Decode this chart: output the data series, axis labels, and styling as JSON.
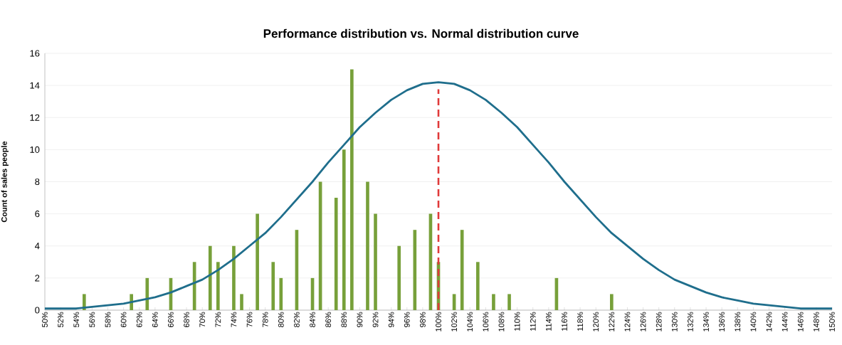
{
  "chart_data": {
    "type": "bar",
    "title": "Performance distribution vs. Normal distribution curve",
    "ylabel": "Count of sales people",
    "series": [
      {
        "color": "#77a03a",
        "x": [
          55,
          61,
          63,
          66,
          69,
          71,
          72,
          74,
          75,
          77,
          79,
          80,
          82,
          84,
          85,
          87,
          88,
          89,
          91,
          92,
          95,
          97,
          99,
          100,
          102,
          103,
          105,
          107,
          109,
          115,
          122
        ],
        "values": [
          1,
          1,
          2,
          2,
          3,
          4,
          3,
          4,
          1,
          6,
          3,
          2,
          5,
          2,
          8,
          7,
          10,
          15,
          8,
          6,
          4,
          5,
          6,
          3,
          1,
          5,
          3,
          1,
          1,
          2,
          1
        ]
      },
      {
        "type": "line",
        "color": "#1f6e8c",
        "x": [
          50,
          52,
          54,
          56,
          58,
          60,
          62,
          64,
          66,
          68,
          70,
          72,
          74,
          76,
          78,
          80,
          82,
          84,
          86,
          88,
          90,
          92,
          94,
          96,
          98,
          100,
          102,
          104,
          106,
          108,
          110,
          112,
          114,
          116,
          118,
          120,
          122,
          124,
          126,
          128,
          130,
          132,
          134,
          136,
          138,
          140,
          142,
          144,
          146,
          148,
          150
        ],
        "values": [
          0.1,
          0.1,
          0.1,
          0.2,
          0.3,
          0.4,
          0.6,
          0.8,
          1.1,
          1.5,
          1.9,
          2.5,
          3.2,
          4.0,
          4.8,
          5.8,
          6.9,
          8.0,
          9.2,
          10.3,
          11.4,
          12.3,
          13.1,
          13.7,
          14.1,
          14.2,
          14.1,
          13.7,
          13.1,
          12.3,
          11.4,
          10.3,
          9.2,
          8.0,
          6.9,
          5.8,
          4.8,
          4.0,
          3.2,
          2.5,
          1.9,
          1.5,
          1.1,
          0.8,
          0.6,
          0.4,
          0.3,
          0.2,
          0.1,
          0.1,
          0.1
        ]
      }
    ],
    "ref_lines": [
      {
        "axis": "x",
        "value": 100,
        "color": "#e03a3a",
        "line_style": "dashed"
      }
    ],
    "xlim": [
      50,
      150
    ],
    "ylim": [
      0,
      16
    ],
    "yticks": [
      0,
      2,
      4,
      6,
      8,
      10,
      12,
      14,
      16
    ],
    "xticks": [
      {
        "value": 50,
        "label": "50%"
      },
      {
        "value": 52,
        "label": "52%"
      },
      {
        "value": 54,
        "label": "54%"
      },
      {
        "value": 56,
        "label": "56%"
      },
      {
        "value": 58,
        "label": "58%"
      },
      {
        "value": 60,
        "label": "60%"
      },
      {
        "value": 62,
        "label": "62%"
      },
      {
        "value": 64,
        "label": "64%"
      },
      {
        "value": 66,
        "label": "66%"
      },
      {
        "value": 68,
        "label": "68%"
      },
      {
        "value": 70,
        "label": "70%"
      },
      {
        "value": 72,
        "label": "72%"
      },
      {
        "value": 74,
        "label": "74%"
      },
      {
        "value": 76,
        "label": "76%"
      },
      {
        "value": 78,
        "label": "78%"
      },
      {
        "value": 80,
        "label": "80%"
      },
      {
        "value": 82,
        "label": "82%"
      },
      {
        "value": 84,
        "label": "84%"
      },
      {
        "value": 86,
        "label": "86%"
      },
      {
        "value": 88,
        "label": "88%"
      },
      {
        "value": 90,
        "label": "90%"
      },
      {
        "value": 92,
        "label": "92%"
      },
      {
        "value": 94,
        "label": "94%"
      },
      {
        "value": 96,
        "label": "96%"
      },
      {
        "value": 98,
        "label": "98%"
      },
      {
        "value": 100,
        "label": "100%"
      },
      {
        "value": 102,
        "label": "102%"
      },
      {
        "value": 104,
        "label": "104%"
      },
      {
        "value": 106,
        "label": "106%"
      },
      {
        "value": 108,
        "label": "108%"
      },
      {
        "value": 110,
        "label": "110%"
      },
      {
        "value": 112,
        "label": "112%"
      },
      {
        "value": 114,
        "label": "114%"
      },
      {
        "value": 116,
        "label": "116%"
      },
      {
        "value": 118,
        "label": "118%"
      },
      {
        "value": 120,
        "label": "120%"
      },
      {
        "value": 122,
        "label": "122%"
      },
      {
        "value": 124,
        "label": "124%"
      },
      {
        "value": 126,
        "label": "126%"
      },
      {
        "value": 128,
        "label": "128%"
      },
      {
        "value": 130,
        "label": "130%"
      },
      {
        "value": 132,
        "label": "132%"
      },
      {
        "value": 134,
        "label": "134%"
      },
      {
        "value": 136,
        "label": "136%"
      },
      {
        "value": 138,
        "label": "138%"
      },
      {
        "value": 140,
        "label": "140%"
      },
      {
        "value": 142,
        "label": "142%"
      },
      {
        "value": 144,
        "label": "144%"
      },
      {
        "value": 146,
        "label": "146%"
      },
      {
        "value": 148,
        "label": "148%"
      },
      {
        "value": 150,
        "label": "150%"
      }
    ],
    "grid": "y"
  }
}
